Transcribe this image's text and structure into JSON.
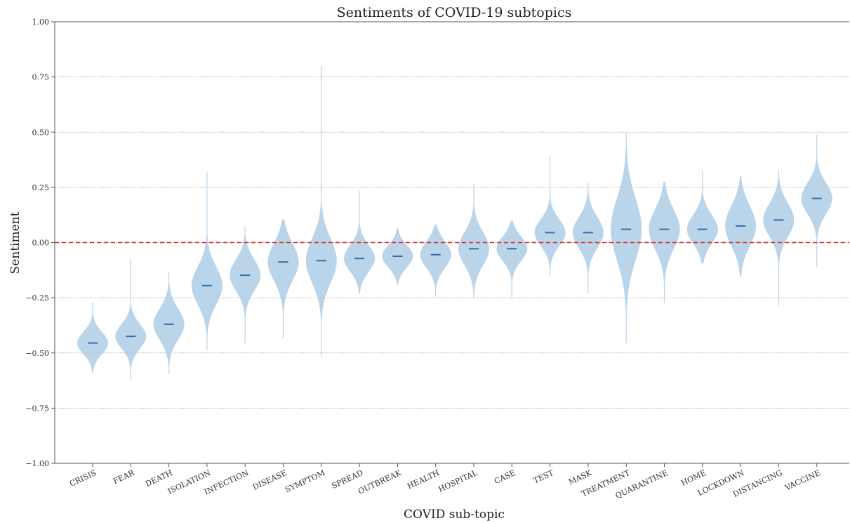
{
  "chart_data": {
    "type": "violin",
    "title": "Sentiments of COVID-19 subtopics",
    "xlabel": "COVID sub-topic",
    "ylabel": "Sentiment",
    "ylim": [
      -1.0,
      1.0
    ],
    "yticks": [
      -1.0,
      -0.75,
      -0.5,
      -0.25,
      0.0,
      0.25,
      0.5,
      0.75,
      1.0
    ],
    "ytick_labels": [
      "−1.00",
      "−0.75",
      "−0.50",
      "−0.25",
      "0.00",
      "0.25",
      "0.50",
      "0.75",
      "1.00"
    ],
    "grid": "horizontal dotted",
    "reference_line": {
      "y": 0.0,
      "color": "#e8231f",
      "style": "dashed"
    },
    "colors": {
      "violin": "#a9c9e3",
      "median": "#2c6fb0"
    },
    "categories": [
      "CRISIS",
      "FEAR",
      "DEATH",
      "ISOLATION",
      "INFECTION",
      "DISEASE",
      "SYMPTOM",
      "SPREAD",
      "OUTBREAK",
      "HEALTH",
      "HOSPITAL",
      "CASE",
      "TEST",
      "MASK",
      "TREATMENT",
      "QUARANTINE",
      "HOME",
      "LOCKDOWN",
      "DISTANCING",
      "VACCINE"
    ],
    "medians": [
      -0.455,
      -0.425,
      -0.37,
      -0.195,
      -0.148,
      -0.088,
      -0.082,
      -0.072,
      -0.062,
      -0.055,
      -0.028,
      -0.028,
      0.045,
      0.045,
      0.06,
      0.06,
      0.06,
      0.075,
      0.102,
      0.2
    ],
    "mins": [
      -0.59,
      -0.615,
      -0.595,
      -0.49,
      -0.455,
      -0.435,
      -0.52,
      -0.235,
      -0.19,
      -0.245,
      -0.255,
      -0.255,
      -0.15,
      -0.23,
      -0.455,
      -0.275,
      -0.095,
      -0.155,
      -0.285,
      -0.11
    ],
    "maxs": [
      -0.27,
      -0.07,
      -0.13,
      0.32,
      0.075,
      0.105,
      0.8,
      0.235,
      0.065,
      0.08,
      0.265,
      0.1,
      0.395,
      0.27,
      0.495,
      0.275,
      0.325,
      0.3,
      0.33,
      0.49
    ],
    "spread": [
      0.05,
      0.055,
      0.07,
      0.085,
      0.07,
      0.085,
      0.1,
      0.06,
      0.05,
      0.06,
      0.075,
      0.055,
      0.06,
      0.07,
      0.14,
      0.09,
      0.065,
      0.09,
      0.075,
      0.07
    ]
  }
}
